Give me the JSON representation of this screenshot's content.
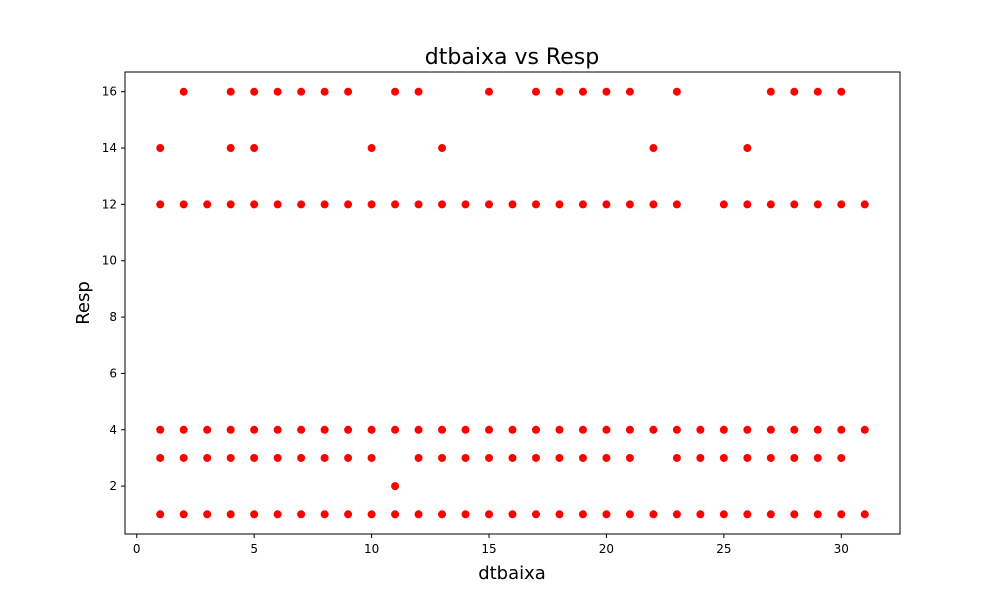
{
  "chart_data": {
    "type": "scatter",
    "title": "dtbaixa vs Resp",
    "xlabel": "dtbaixa",
    "ylabel": "Resp",
    "xlim": [
      -0.5,
      32.5
    ],
    "ylim": [
      0.3,
      16.7
    ],
    "xticks": [
      0,
      5,
      10,
      15,
      20,
      25,
      30
    ],
    "yticks": [
      2,
      4,
      6,
      8,
      10,
      12,
      14,
      16
    ],
    "grid": false,
    "marker_color": "#ff0000",
    "points": [
      [
        1,
        1
      ],
      [
        2,
        1
      ],
      [
        3,
        1
      ],
      [
        4,
        1
      ],
      [
        5,
        1
      ],
      [
        6,
        1
      ],
      [
        7,
        1
      ],
      [
        8,
        1
      ],
      [
        9,
        1
      ],
      [
        10,
        1
      ],
      [
        11,
        1
      ],
      [
        12,
        1
      ],
      [
        13,
        1
      ],
      [
        14,
        1
      ],
      [
        15,
        1
      ],
      [
        16,
        1
      ],
      [
        17,
        1
      ],
      [
        18,
        1
      ],
      [
        19,
        1
      ],
      [
        20,
        1
      ],
      [
        21,
        1
      ],
      [
        22,
        1
      ],
      [
        23,
        1
      ],
      [
        24,
        1
      ],
      [
        25,
        1
      ],
      [
        26,
        1
      ],
      [
        27,
        1
      ],
      [
        28,
        1
      ],
      [
        29,
        1
      ],
      [
        30,
        1
      ],
      [
        31,
        1
      ],
      [
        11,
        2
      ],
      [
        1,
        3
      ],
      [
        2,
        3
      ],
      [
        3,
        3
      ],
      [
        4,
        3
      ],
      [
        5,
        3
      ],
      [
        6,
        3
      ],
      [
        7,
        3
      ],
      [
        8,
        3
      ],
      [
        9,
        3
      ],
      [
        10,
        3
      ],
      [
        12,
        3
      ],
      [
        13,
        3
      ],
      [
        14,
        3
      ],
      [
        15,
        3
      ],
      [
        16,
        3
      ],
      [
        17,
        3
      ],
      [
        18,
        3
      ],
      [
        19,
        3
      ],
      [
        20,
        3
      ],
      [
        21,
        3
      ],
      [
        23,
        3
      ],
      [
        24,
        3
      ],
      [
        25,
        3
      ],
      [
        26,
        3
      ],
      [
        27,
        3
      ],
      [
        28,
        3
      ],
      [
        29,
        3
      ],
      [
        30,
        3
      ],
      [
        1,
        4
      ],
      [
        2,
        4
      ],
      [
        3,
        4
      ],
      [
        4,
        4
      ],
      [
        5,
        4
      ],
      [
        6,
        4
      ],
      [
        7,
        4
      ],
      [
        8,
        4
      ],
      [
        9,
        4
      ],
      [
        10,
        4
      ],
      [
        11,
        4
      ],
      [
        12,
        4
      ],
      [
        13,
        4
      ],
      [
        14,
        4
      ],
      [
        15,
        4
      ],
      [
        16,
        4
      ],
      [
        17,
        4
      ],
      [
        18,
        4
      ],
      [
        19,
        4
      ],
      [
        20,
        4
      ],
      [
        21,
        4
      ],
      [
        22,
        4
      ],
      [
        23,
        4
      ],
      [
        24,
        4
      ],
      [
        25,
        4
      ],
      [
        26,
        4
      ],
      [
        27,
        4
      ],
      [
        28,
        4
      ],
      [
        29,
        4
      ],
      [
        30,
        4
      ],
      [
        31,
        4
      ],
      [
        1,
        12
      ],
      [
        2,
        12
      ],
      [
        3,
        12
      ],
      [
        4,
        12
      ],
      [
        5,
        12
      ],
      [
        6,
        12
      ],
      [
        7,
        12
      ],
      [
        8,
        12
      ],
      [
        9,
        12
      ],
      [
        10,
        12
      ],
      [
        11,
        12
      ],
      [
        12,
        12
      ],
      [
        13,
        12
      ],
      [
        14,
        12
      ],
      [
        15,
        12
      ],
      [
        16,
        12
      ],
      [
        17,
        12
      ],
      [
        18,
        12
      ],
      [
        19,
        12
      ],
      [
        20,
        12
      ],
      [
        21,
        12
      ],
      [
        22,
        12
      ],
      [
        23,
        12
      ],
      [
        25,
        12
      ],
      [
        26,
        12
      ],
      [
        27,
        12
      ],
      [
        28,
        12
      ],
      [
        29,
        12
      ],
      [
        30,
        12
      ],
      [
        31,
        12
      ],
      [
        1,
        14
      ],
      [
        4,
        14
      ],
      [
        5,
        14
      ],
      [
        10,
        14
      ],
      [
        13,
        14
      ],
      [
        22,
        14
      ],
      [
        26,
        14
      ],
      [
        2,
        16
      ],
      [
        4,
        16
      ],
      [
        5,
        16
      ],
      [
        6,
        16
      ],
      [
        7,
        16
      ],
      [
        8,
        16
      ],
      [
        9,
        16
      ],
      [
        11,
        16
      ],
      [
        12,
        16
      ],
      [
        15,
        16
      ],
      [
        17,
        16
      ],
      [
        18,
        16
      ],
      [
        19,
        16
      ],
      [
        20,
        16
      ],
      [
        21,
        16
      ],
      [
        23,
        16
      ],
      [
        27,
        16
      ],
      [
        28,
        16
      ],
      [
        29,
        16
      ],
      [
        30,
        16
      ]
    ]
  }
}
